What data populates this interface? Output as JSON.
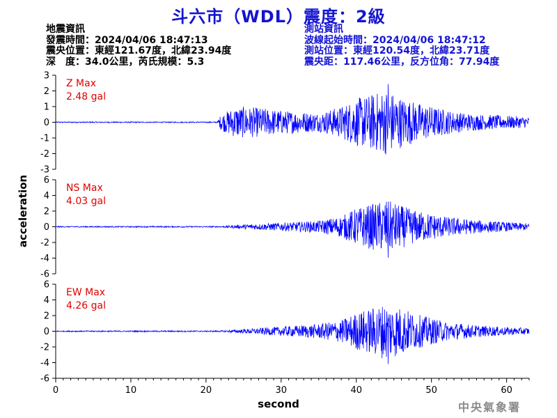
{
  "title": "斗六市（WDL）震度：2級",
  "left_info": {
    "heading": "地震資訊",
    "origin_time": "發震時間：2024/04/06 18:47:13",
    "epicenter": "震央位置：東經121.67度，北緯23.94度",
    "depth_mag": "深　度：34.0公里，芮氏規模：5.3"
  },
  "right_info": {
    "heading": "測站資訊",
    "wave_start": "波線起始時間：2024/04/06 18:47:12",
    "station_loc": "測站位置：東經120.54度，北緯23.71度",
    "distance": "震央距：117.46公里，反方位角：77.94度"
  },
  "footer": "中央氣象署",
  "colors": {
    "title": "#1414d2",
    "trace": "#0000ff",
    "label": "#e00000",
    "axis": "#000000"
  },
  "chart_data": {
    "type": "line",
    "xlabel": "second",
    "ylabel": "acceleration",
    "xlim": [
      0,
      63
    ],
    "xticks": [
      0,
      10,
      20,
      30,
      40,
      50,
      60
    ],
    "panels": [
      {
        "name": "Z",
        "label_max": "Z Max",
        "label_val": "2.48 gal",
        "ylim": [
          -3,
          3
        ],
        "yticks": [
          3,
          2,
          1,
          0,
          -1,
          -2,
          -3
        ],
        "peak": 2.48,
        "envelope": [
          [
            0,
            0.04
          ],
          [
            21.5,
            0.04
          ],
          [
            22,
            0.6
          ],
          [
            24,
            1.2
          ],
          [
            27,
            1.1
          ],
          [
            30,
            0.9
          ],
          [
            35,
            0.7
          ],
          [
            38,
            1.2
          ],
          [
            40,
            1.8
          ],
          [
            42,
            2.1
          ],
          [
            44,
            2.48
          ],
          [
            46,
            1.9
          ],
          [
            48,
            1.5
          ],
          [
            50,
            1.2
          ],
          [
            53,
            0.8
          ],
          [
            56,
            0.6
          ],
          [
            60,
            0.5
          ],
          [
            63,
            0.4
          ]
        ]
      },
      {
        "name": "NS",
        "label_max": "NS Max",
        "label_val": "4.03 gal",
        "ylim": [
          -6,
          6
        ],
        "yticks": [
          6,
          4,
          2,
          0,
          -2,
          -4,
          -6
        ],
        "peak": 4.03,
        "envelope": [
          [
            0,
            0.08
          ],
          [
            22,
            0.1
          ],
          [
            26,
            0.4
          ],
          [
            30,
            0.6
          ],
          [
            35,
            0.9
          ],
          [
            38,
            1.6
          ],
          [
            40,
            2.8
          ],
          [
            42,
            3.4
          ],
          [
            44,
            4.03
          ],
          [
            46,
            3.2
          ],
          [
            48,
            2.4
          ],
          [
            50,
            2.0
          ],
          [
            52,
            1.5
          ],
          [
            56,
            1.0
          ],
          [
            60,
            0.7
          ],
          [
            63,
            0.5
          ]
        ]
      },
      {
        "name": "EW",
        "label_max": "EW Max",
        "label_val": "4.26 gal",
        "ylim": [
          -6,
          6
        ],
        "yticks": [
          6,
          4,
          2,
          0,
          -2,
          -4,
          -6
        ],
        "peak": 4.26,
        "envelope": [
          [
            0,
            0.08
          ],
          [
            22,
            0.1
          ],
          [
            26,
            0.4
          ],
          [
            30,
            0.7
          ],
          [
            35,
            1.1
          ],
          [
            38,
            1.7
          ],
          [
            40,
            2.8
          ],
          [
            42,
            3.5
          ],
          [
            44,
            4.26
          ],
          [
            46,
            3.6
          ],
          [
            48,
            2.6
          ],
          [
            50,
            2.0
          ],
          [
            52,
            1.4
          ],
          [
            56,
            0.9
          ],
          [
            60,
            0.6
          ],
          [
            63,
            0.5
          ]
        ]
      }
    ]
  }
}
